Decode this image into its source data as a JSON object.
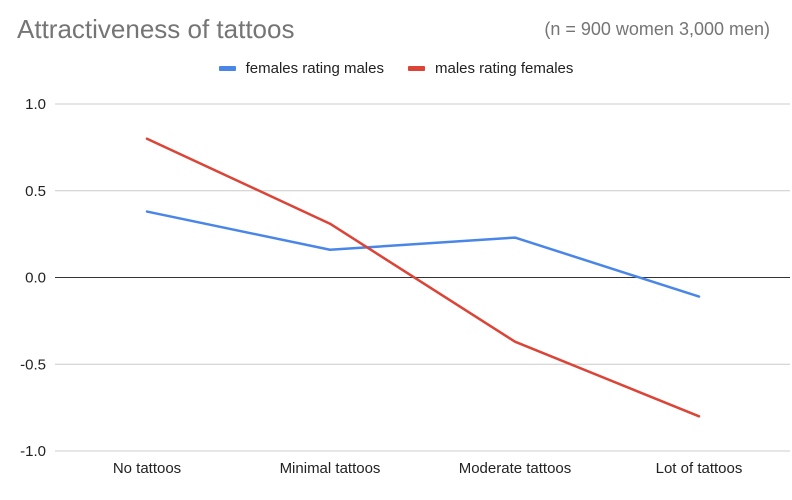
{
  "chart_data": {
    "type": "line",
    "title": "Attractiveness of tattoos",
    "subtitle": "(n = 900 women 3,000 men)",
    "categories": [
      "No tattoos",
      "Minimal tattoos",
      "Moderate tattoos",
      "Lot of tattoos"
    ],
    "series": [
      {
        "name": "females rating males",
        "color": "#4a86e8",
        "values": [
          0.38,
          0.16,
          0.23,
          -0.11
        ]
      },
      {
        "name": "males rating females",
        "color": "#db4437",
        "values": [
          0.8,
          0.31,
          -0.37,
          -0.8
        ]
      }
    ],
    "ylim": [
      -1.0,
      1.0
    ],
    "yticks": [
      "1.0",
      "0.5",
      "0.0",
      "-0.5",
      "-1.0"
    ],
    "ytick_values": [
      1.0,
      0.5,
      0.0,
      -0.5,
      -1.0
    ],
    "legend_position": "top",
    "grid": true
  }
}
